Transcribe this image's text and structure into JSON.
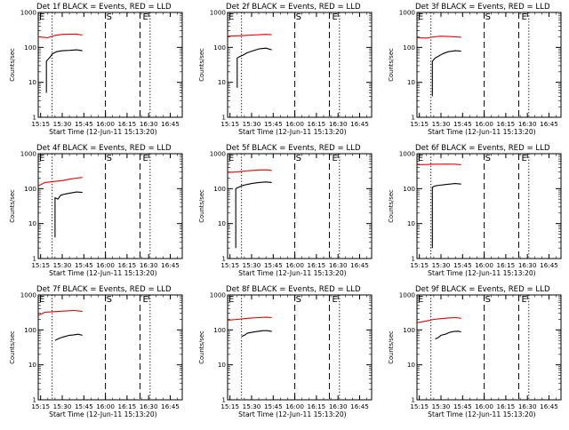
{
  "figure": {
    "background": "#ffffff",
    "axis_color": "#000000",
    "series_colors": {
      "events": "#000000",
      "lld": "#ee0000"
    },
    "event_markers": [
      "E",
      "S",
      "E"
    ]
  },
  "chart_data": [
    {
      "type": "line",
      "title": "Det 1f BLACK = Events, RED = LLD",
      "xlabel": "Start Time (12-Jun-11 15:13:20)",
      "ylabel": "Counts/sec",
      "ylog": true,
      "ylim": [
        1,
        1000
      ],
      "yticks": [
        "1",
        "10",
        "100",
        "1000"
      ],
      "xticks": [
        "15:15",
        "15:30",
        "15:45",
        "16:00",
        "16:15",
        "16:30",
        "16:45"
      ],
      "xlim": [
        "15:13:20",
        "16:53:20"
      ],
      "series": [
        {
          "name": "LLD",
          "color": "#ee0000",
          "x": [
            "15:13:20",
            "15:20",
            "15:25",
            "15:30",
            "15:35",
            "15:40",
            "15:44"
          ],
          "values": [
            200,
            190,
            220,
            235,
            240,
            240,
            225
          ]
        },
        {
          "name": "Events",
          "color": "#000000",
          "x": [
            "15:19",
            "15:19",
            "15:21",
            "15:22",
            "15:23",
            "15:26",
            "15:30",
            "15:35",
            "15:40",
            "15:44"
          ],
          "values": [
            5,
            40,
            50,
            55,
            65,
            75,
            80,
            82,
            85,
            80
          ]
        }
      ]
    },
    {
      "type": "line",
      "title": "Det 2f BLACK = Events, RED = LLD",
      "xlabel": "Start Time (12-Jun-11 15:13:20)",
      "ylabel": "Counts/sec",
      "ylog": true,
      "ylim": [
        1,
        1000
      ],
      "yticks": [
        "1",
        "10",
        "100",
        "1000"
      ],
      "xticks": [
        "15:15",
        "15:30",
        "15:45",
        "16:00",
        "16:15",
        "16:30",
        "16:45"
      ],
      "xlim": [
        "15:13:20",
        "16:53:20"
      ],
      "series": [
        {
          "name": "LLD",
          "color": "#ee0000",
          "x": [
            "15:13:20",
            "15:20",
            "15:25",
            "15:30",
            "15:35",
            "15:40",
            "15:44"
          ],
          "values": [
            210,
            215,
            220,
            225,
            230,
            235,
            230
          ]
        },
        {
          "name": "Events",
          "color": "#000000",
          "x": [
            "15:20",
            "15:20",
            "15:22",
            "15:24",
            "15:27",
            "15:31",
            "15:35",
            "15:40",
            "15:44"
          ],
          "values": [
            7,
            50,
            55,
            60,
            70,
            80,
            90,
            95,
            85
          ]
        }
      ]
    },
    {
      "type": "line",
      "title": "Det 3f BLACK = Events, RED = LLD",
      "xlabel": "Start Time (12-Jun-11 15:13:20)",
      "ylabel": "Counts/sec",
      "ylog": true,
      "ylim": [
        1,
        1000
      ],
      "yticks": [
        "1",
        "10",
        "100",
        "1000"
      ],
      "xticks": [
        "15:15",
        "15:30",
        "15:45",
        "16:00",
        "16:15",
        "16:30",
        "16:45"
      ],
      "xlim": [
        "15:13:20",
        "16:53:20"
      ],
      "series": [
        {
          "name": "LLD",
          "color": "#ee0000",
          "x": [
            "15:13:20",
            "15:20",
            "15:25",
            "15:30",
            "15:35",
            "15:40",
            "15:44"
          ],
          "values": [
            190,
            185,
            200,
            210,
            205,
            200,
            195
          ]
        },
        {
          "name": "Events",
          "color": "#000000",
          "x": [
            "15:24",
            "15:24",
            "15:26",
            "15:28",
            "15:31",
            "15:35",
            "15:40",
            "15:44"
          ],
          "values": [
            4,
            40,
            50,
            55,
            65,
            75,
            80,
            78
          ]
        }
      ]
    },
    {
      "type": "line",
      "title": "Det 4f BLACK = Events, RED = LLD",
      "xlabel": "Start Time (12-Jun-11 15:13:20)",
      "ylabel": "Counts/sec",
      "ylog": true,
      "ylim": [
        1,
        1000
      ],
      "yticks": [
        "1",
        "10",
        "100",
        "1000"
      ],
      "xticks": [
        "15:15",
        "15:30",
        "15:45",
        "16:00",
        "16:15",
        "16:30",
        "16:45"
      ],
      "xlim": [
        "15:13:20",
        "16:53:20"
      ],
      "series": [
        {
          "name": "LLD",
          "color": "#ee0000",
          "x": [
            "15:13:20",
            "15:18",
            "15:24",
            "15:30",
            "15:36",
            "15:40",
            "15:44"
          ],
          "values": [
            120,
            150,
            160,
            170,
            190,
            200,
            210
          ]
        },
        {
          "name": "Events",
          "color": "#000000",
          "x": [
            "15:25",
            "15:25",
            "15:27",
            "15:29",
            "15:32",
            "15:36",
            "15:40",
            "15:44"
          ],
          "values": [
            4,
            55,
            50,
            65,
            70,
            75,
            80,
            78
          ]
        }
      ]
    },
    {
      "type": "line",
      "title": "Det 5f BLACK = Events, RED = LLD",
      "xlabel": "Start Time (12-Jun-11 15:13:20)",
      "ylabel": "Counts/sec",
      "ylog": true,
      "ylim": [
        1,
        1000
      ],
      "yticks": [
        "1",
        "10",
        "100",
        "1000"
      ],
      "xticks": [
        "15:15",
        "15:30",
        "15:45",
        "16:00",
        "16:15",
        "16:30",
        "16:45"
      ],
      "xlim": [
        "15:13:20",
        "16:53:20"
      ],
      "series": [
        {
          "name": "LLD",
          "color": "#ee0000",
          "x": [
            "15:13:20",
            "15:20",
            "15:25",
            "15:30",
            "15:35",
            "15:40",
            "15:44"
          ],
          "values": [
            290,
            300,
            320,
            330,
            340,
            345,
            330
          ]
        },
        {
          "name": "Events",
          "color": "#000000",
          "x": [
            "15:19",
            "15:19",
            "15:21",
            "15:23",
            "15:26",
            "15:30",
            "15:35",
            "15:40",
            "15:44"
          ],
          "values": [
            2,
            100,
            110,
            120,
            130,
            140,
            150,
            155,
            150
          ]
        }
      ]
    },
    {
      "type": "line",
      "title": "Det 6f BLACK = Events, RED = LLD",
      "xlabel": "Start Time (12-Jun-11 15:13:20)",
      "ylabel": "Counts/sec",
      "ylog": true,
      "ylim": [
        1,
        1000
      ],
      "yticks": [
        "1",
        "10",
        "100",
        "1000"
      ],
      "xticks": [
        "15:15",
        "15:30",
        "15:45",
        "16:00",
        "16:15",
        "16:30",
        "16:45"
      ],
      "xlim": [
        "15:13:20",
        "16:53:20"
      ],
      "series": [
        {
          "name": "LLD",
          "color": "#ee0000",
          "x": [
            "15:13:20",
            "15:20",
            "15:25",
            "15:30",
            "15:35",
            "15:40",
            "15:44"
          ],
          "values": [
            480,
            490,
            500,
            500,
            505,
            500,
            480
          ]
        },
        {
          "name": "Events",
          "color": "#000000",
          "x": [
            "15:24",
            "15:24",
            "15:26",
            "15:29",
            "15:32",
            "15:36",
            "15:40",
            "15:44"
          ],
          "values": [
            2,
            110,
            120,
            125,
            130,
            135,
            140,
            135
          ]
        }
      ]
    },
    {
      "type": "line",
      "title": "Det 7f BLACK = Events, RED = LLD",
      "xlabel": "Start Time (12-Jun-11 15:13:20)",
      "ylabel": "Counts/sec",
      "ylog": true,
      "ylim": [
        1,
        1000
      ],
      "yticks": [
        "1",
        "10",
        "100",
        "1000"
      ],
      "xticks": [
        "15:15",
        "15:30",
        "15:45",
        "16:00",
        "16:15",
        "16:30",
        "16:45"
      ],
      "xlim": [
        "15:13:20",
        "16:53:20"
      ],
      "series": [
        {
          "name": "LLD",
          "color": "#ee0000",
          "x": [
            "15:13:20",
            "15:18",
            "15:23",
            "15:28",
            "15:33",
            "15:38",
            "15:44"
          ],
          "values": [
            260,
            320,
            330,
            340,
            350,
            360,
            340
          ]
        },
        {
          "name": "Events",
          "color": "#000000",
          "x": [
            "15:25",
            "15:27",
            "15:29",
            "15:32",
            "15:35",
            "15:38",
            "15:41",
            "15:44"
          ],
          "values": [
            50,
            55,
            60,
            65,
            70,
            72,
            75,
            70
          ]
        }
      ]
    },
    {
      "type": "line",
      "title": "Det 8f BLACK = Events, RED = LLD",
      "xlabel": "Start Time (12-Jun-11 15:13:20)",
      "ylabel": "Counts/sec",
      "ylog": true,
      "ylim": [
        1,
        1000
      ],
      "yticks": [
        "1",
        "10",
        "100",
        "1000"
      ],
      "xticks": [
        "15:15",
        "15:30",
        "15:45",
        "16:00",
        "16:15",
        "16:30",
        "16:45"
      ],
      "xlim": [
        "15:13:20",
        "16:53:20"
      ],
      "series": [
        {
          "name": "LLD",
          "color": "#ee0000",
          "x": [
            "15:13:20",
            "15:20",
            "15:25",
            "15:30",
            "15:35",
            "15:40",
            "15:44"
          ],
          "values": [
            190,
            200,
            210,
            220,
            225,
            230,
            225
          ]
        },
        {
          "name": "Events",
          "color": "#000000",
          "x": [
            "15:23",
            "15:25",
            "15:27",
            "15:30",
            "15:34",
            "15:38",
            "15:41",
            "15:44"
          ],
          "values": [
            65,
            70,
            80,
            85,
            90,
            95,
            95,
            90
          ]
        }
      ]
    },
    {
      "type": "line",
      "title": "Det 9f BLACK = Events, RED = LLD",
      "xlabel": "Start Time (12-Jun-11 15:13:20)",
      "ylabel": "Counts/sec",
      "ylog": true,
      "ylim": [
        1,
        1000
      ],
      "yticks": [
        "1",
        "10",
        "100",
        "1000"
      ],
      "xticks": [
        "15:15",
        "15:30",
        "15:45",
        "16:00",
        "16:15",
        "16:30",
        "16:45"
      ],
      "xlim": [
        "15:13:20",
        "16:53:20"
      ],
      "series": [
        {
          "name": "LLD",
          "color": "#ee0000",
          "x": [
            "15:13:20",
            "15:20",
            "15:25",
            "15:30",
            "15:35",
            "15:40",
            "15:44"
          ],
          "values": [
            160,
            180,
            200,
            210,
            220,
            225,
            215
          ]
        },
        {
          "name": "Events",
          "color": "#000000",
          "x": [
            "15:26",
            "15:28",
            "15:30",
            "15:33",
            "15:36",
            "15:39",
            "15:42",
            "15:44"
          ],
          "values": [
            55,
            60,
            70,
            75,
            85,
            90,
            92,
            88
          ]
        }
      ]
    }
  ]
}
